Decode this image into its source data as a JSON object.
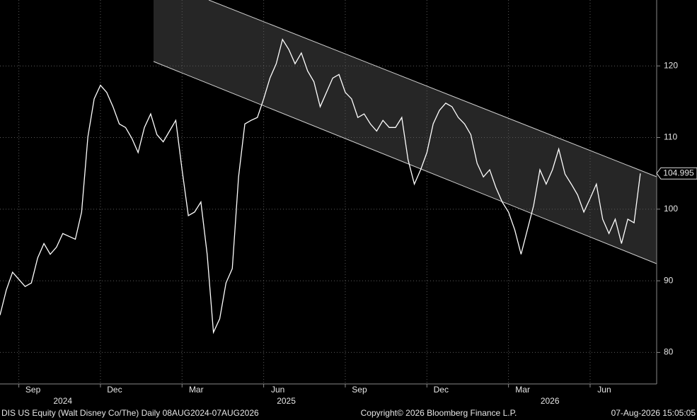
{
  "chart_data": {
    "type": "line",
    "footer_left": "DIS US Equity (Walt Disney Co/The) Daily 08AUG2024-07AUG2026",
    "footer_center": "Copyright© 2026 Bloomberg Finance L.P.",
    "footer_right": "07-Aug-2026 15:05:05",
    "series": [
      {
        "name": "DIS US Equity",
        "color": "#ffffff",
        "values": [
          85.2,
          88.7,
          91.2,
          90.2,
          89.2,
          89.7,
          93.2,
          95.2,
          93.7,
          94.7,
          96.6,
          96.2,
          95.8,
          99.6,
          110.1,
          115.4,
          117.3,
          116.3,
          114.3,
          111.9,
          111.4,
          109.9,
          107.9,
          111.4,
          113.3,
          110.4,
          109.4,
          110.9,
          112.4,
          105.5,
          99.1,
          99.6,
          101.0,
          93.7,
          82.8,
          84.7,
          89.7,
          91.7,
          104.5,
          111.9,
          112.4,
          112.8,
          115.4,
          118.3,
          120.3,
          123.7,
          122.3,
          120.3,
          121.8,
          119.3,
          117.8,
          114.3,
          116.3,
          118.3,
          118.8,
          116.3,
          115.4,
          112.8,
          113.3,
          111.9,
          110.9,
          112.4,
          111.4,
          111.4,
          112.8,
          106.9,
          103.5,
          105.5,
          107.9,
          111.9,
          113.8,
          114.8,
          114.3,
          112.8,
          111.9,
          110.4,
          106.4,
          104.5,
          105.5,
          103.0,
          101.0,
          99.6,
          97.1,
          93.7,
          97.1,
          100.5,
          105.5,
          103.5,
          105.5,
          108.4,
          104.9,
          103.5,
          102.0,
          99.6,
          101.5,
          103.5,
          98.6,
          96.6,
          98.6,
          95.2,
          98.6,
          98.1,
          104.995
        ],
        "last_label": "104.995"
      }
    ],
    "xlim": [
      0,
      104.6
    ],
    "xticks": [
      {
        "value": 3,
        "label": "Sep"
      },
      {
        "value": 16,
        "label": "Dec"
      },
      {
        "value": 29,
        "label": "Mar"
      },
      {
        "value": 42,
        "label": "Jun"
      },
      {
        "value": 55,
        "label": "Sep"
      },
      {
        "value": 68,
        "label": "Dec"
      },
      {
        "value": 81,
        "label": "Mar"
      },
      {
        "value": 94,
        "label": "Jun"
      }
    ],
    "year_ticks": [
      {
        "value": 10,
        "label": "2024"
      },
      {
        "value": 45.6,
        "label": "2025"
      },
      {
        "value": 87.6,
        "label": "2026"
      }
    ],
    "ylim": [
      75.6,
      129.2
    ],
    "yticks": [
      80,
      90,
      100,
      110,
      120
    ],
    "grid": true
  }
}
